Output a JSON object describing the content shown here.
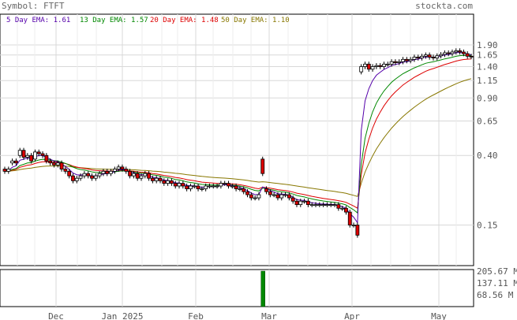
{
  "header": {
    "symbol_label": "Symbol: FTFT",
    "site": "stockta.com"
  },
  "colors": {
    "up_candle": "#ffffff",
    "down_candle": "#dd0000",
    "candle_outline": "#000000",
    "ema5": "#5500aa",
    "ema13": "#008800",
    "ema20": "#dd0000",
    "ema50": "#887700",
    "volume": "#008800",
    "grid": "#d8d8d8"
  },
  "chart_data": [
    {
      "type": "candlestick",
      "title": "",
      "scale": "log",
      "ylim": [
        0.1,
        2.1
      ],
      "y_ticks": [
        "1.90",
        "1.65",
        "1.40",
        "1.15",
        "0.90",
        "0.65",
        "0.40",
        "0.15"
      ],
      "x_ticks": [
        "Dec",
        "Jan 2025",
        "Feb",
        "Mar",
        "Apr",
        "May"
      ],
      "legend": [
        {
          "label": "5 Day EMA: 1.61",
          "color_key": "ema5"
        },
        {
          "label": "13 Day EMA: 1.57",
          "color_key": "ema13"
        },
        {
          "label": "20 Day EMA: 1.48",
          "color_key": "ema20"
        },
        {
          "label": "50 Day EMA: 1.10",
          "color_key": "ema50"
        }
      ],
      "close_series": [
        0.32,
        0.33,
        0.37,
        0.36,
        0.43,
        0.39,
        0.4,
        0.37,
        0.42,
        0.41,
        0.4,
        0.37,
        0.36,
        0.35,
        0.36,
        0.33,
        0.32,
        0.3,
        0.28,
        0.29,
        0.3,
        0.31,
        0.3,
        0.29,
        0.3,
        0.31,
        0.32,
        0.31,
        0.32,
        0.33,
        0.34,
        0.33,
        0.32,
        0.3,
        0.31,
        0.29,
        0.3,
        0.31,
        0.29,
        0.28,
        0.29,
        0.28,
        0.27,
        0.28,
        0.27,
        0.26,
        0.27,
        0.26,
        0.25,
        0.26,
        0.26,
        0.25,
        0.25,
        0.26,
        0.26,
        0.26,
        0.26,
        0.27,
        0.27,
        0.26,
        0.26,
        0.25,
        0.25,
        0.24,
        0.23,
        0.22,
        0.22,
        0.23,
        0.31,
        0.24,
        0.23,
        0.23,
        0.22,
        0.23,
        0.23,
        0.22,
        0.21,
        0.2,
        0.21,
        0.21,
        0.2,
        0.2,
        0.2,
        0.2,
        0.2,
        0.2,
        0.2,
        0.2,
        0.19,
        0.19,
        0.18,
        0.15,
        0.15,
        0.13,
        1.4,
        1.45,
        1.35,
        1.4,
        1.42,
        1.4,
        1.45,
        1.45,
        1.5,
        1.48,
        1.5,
        1.55,
        1.52,
        1.55,
        1.6,
        1.58,
        1.62,
        1.65,
        1.6,
        1.58,
        1.63,
        1.66,
        1.7,
        1.68,
        1.72,
        1.75,
        1.72,
        1.68,
        1.62,
        1.61
      ],
      "open_series": [
        0.33,
        0.32,
        0.36,
        0.37,
        0.4,
        0.43,
        0.39,
        0.4,
        0.38,
        0.42,
        0.41,
        0.4,
        0.37,
        0.36,
        0.35,
        0.36,
        0.33,
        0.32,
        0.3,
        0.28,
        0.29,
        0.3,
        0.31,
        0.3,
        0.29,
        0.3,
        0.31,
        0.32,
        0.31,
        0.32,
        0.33,
        0.34,
        0.33,
        0.32,
        0.3,
        0.31,
        0.29,
        0.3,
        0.31,
        0.29,
        0.28,
        0.29,
        0.28,
        0.27,
        0.28,
        0.27,
        0.26,
        0.27,
        0.26,
        0.25,
        0.26,
        0.26,
        0.25,
        0.25,
        0.26,
        0.26,
        0.26,
        0.26,
        0.27,
        0.27,
        0.26,
        0.26,
        0.25,
        0.25,
        0.24,
        0.23,
        0.22,
        0.22,
        0.38,
        0.25,
        0.24,
        0.23,
        0.23,
        0.22,
        0.23,
        0.23,
        0.22,
        0.21,
        0.2,
        0.21,
        0.21,
        0.2,
        0.2,
        0.2,
        0.2,
        0.2,
        0.2,
        0.2,
        0.2,
        0.19,
        0.19,
        0.18,
        0.15,
        0.15,
        1.3,
        1.4,
        1.45,
        1.35,
        1.4,
        1.42,
        1.4,
        1.45,
        1.45,
        1.5,
        1.48,
        1.5,
        1.55,
        1.52,
        1.55,
        1.6,
        1.58,
        1.62,
        1.65,
        1.6,
        1.58,
        1.63,
        1.66,
        1.7,
        1.68,
        1.72,
        1.75,
        1.72,
        1.68,
        1.62
      ],
      "ema_end_values": {
        "ema5": 1.61,
        "ema13": 1.57,
        "ema20": 1.48,
        "ema50": 1.1
      }
    },
    {
      "type": "bar",
      "title": "",
      "ylabel_ticks": [
        "205.67 M",
        "137.11 M",
        "68.56 M"
      ],
      "spike_index": 68,
      "spike_value_millions": 205.67
    }
  ]
}
